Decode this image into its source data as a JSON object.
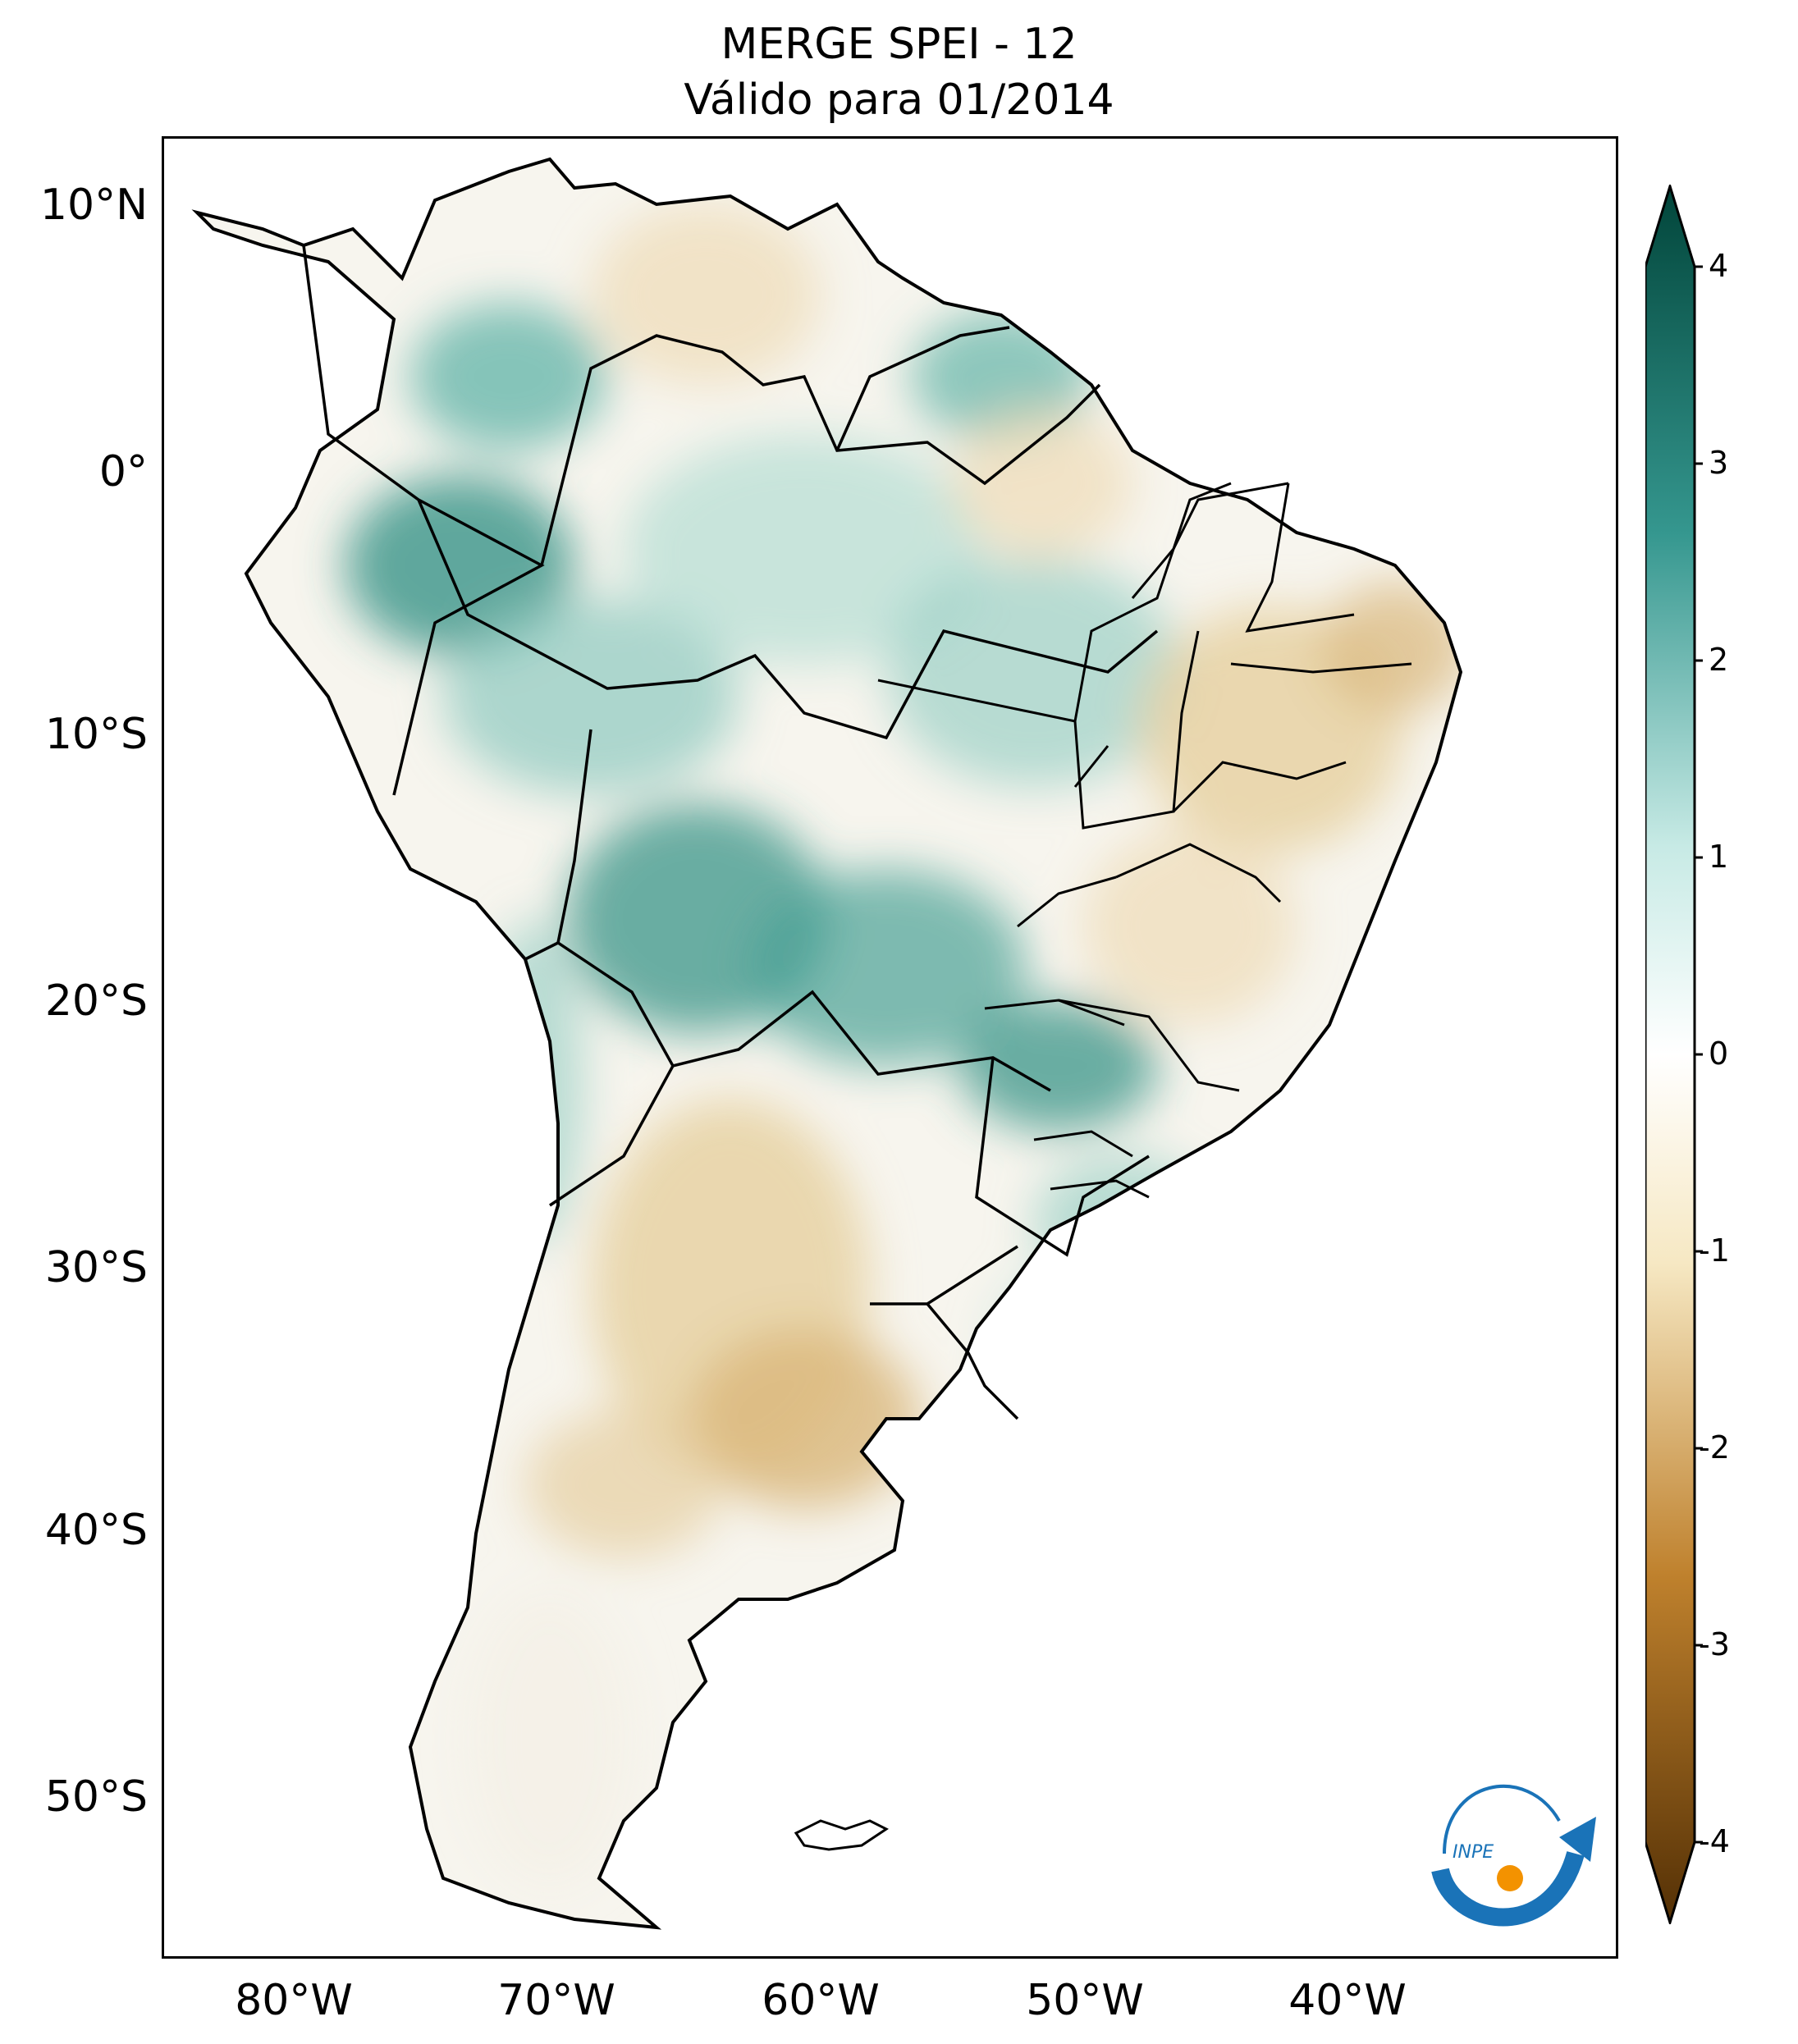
{
  "title": {
    "line1": "MERGE   SPEI - 12",
    "line2": "Válido para 01/2014"
  },
  "axes": {
    "lat_labels": [
      "10°N",
      "0°",
      "10°S",
      "20°S",
      "30°S",
      "40°S",
      "50°S"
    ],
    "lon_labels": [
      "80°W",
      "70°W",
      "60°W",
      "50°W",
      "40°W"
    ]
  },
  "colorbar": {
    "ticks": [
      "4",
      "3",
      "2",
      "1",
      "0",
      "-1",
      "-2",
      "-3",
      "-4"
    ],
    "min": -4,
    "max": 4,
    "colors": {
      "wet": "#01453a",
      "mid_wet": "#5fb3a7",
      "neutral": "#ffffff",
      "mid_dry": "#d9b77a",
      "dry": "#543005"
    }
  },
  "logo": {
    "text": "INPE",
    "colors": {
      "blue": "#1a73b8",
      "orange": "#f39200"
    }
  }
}
